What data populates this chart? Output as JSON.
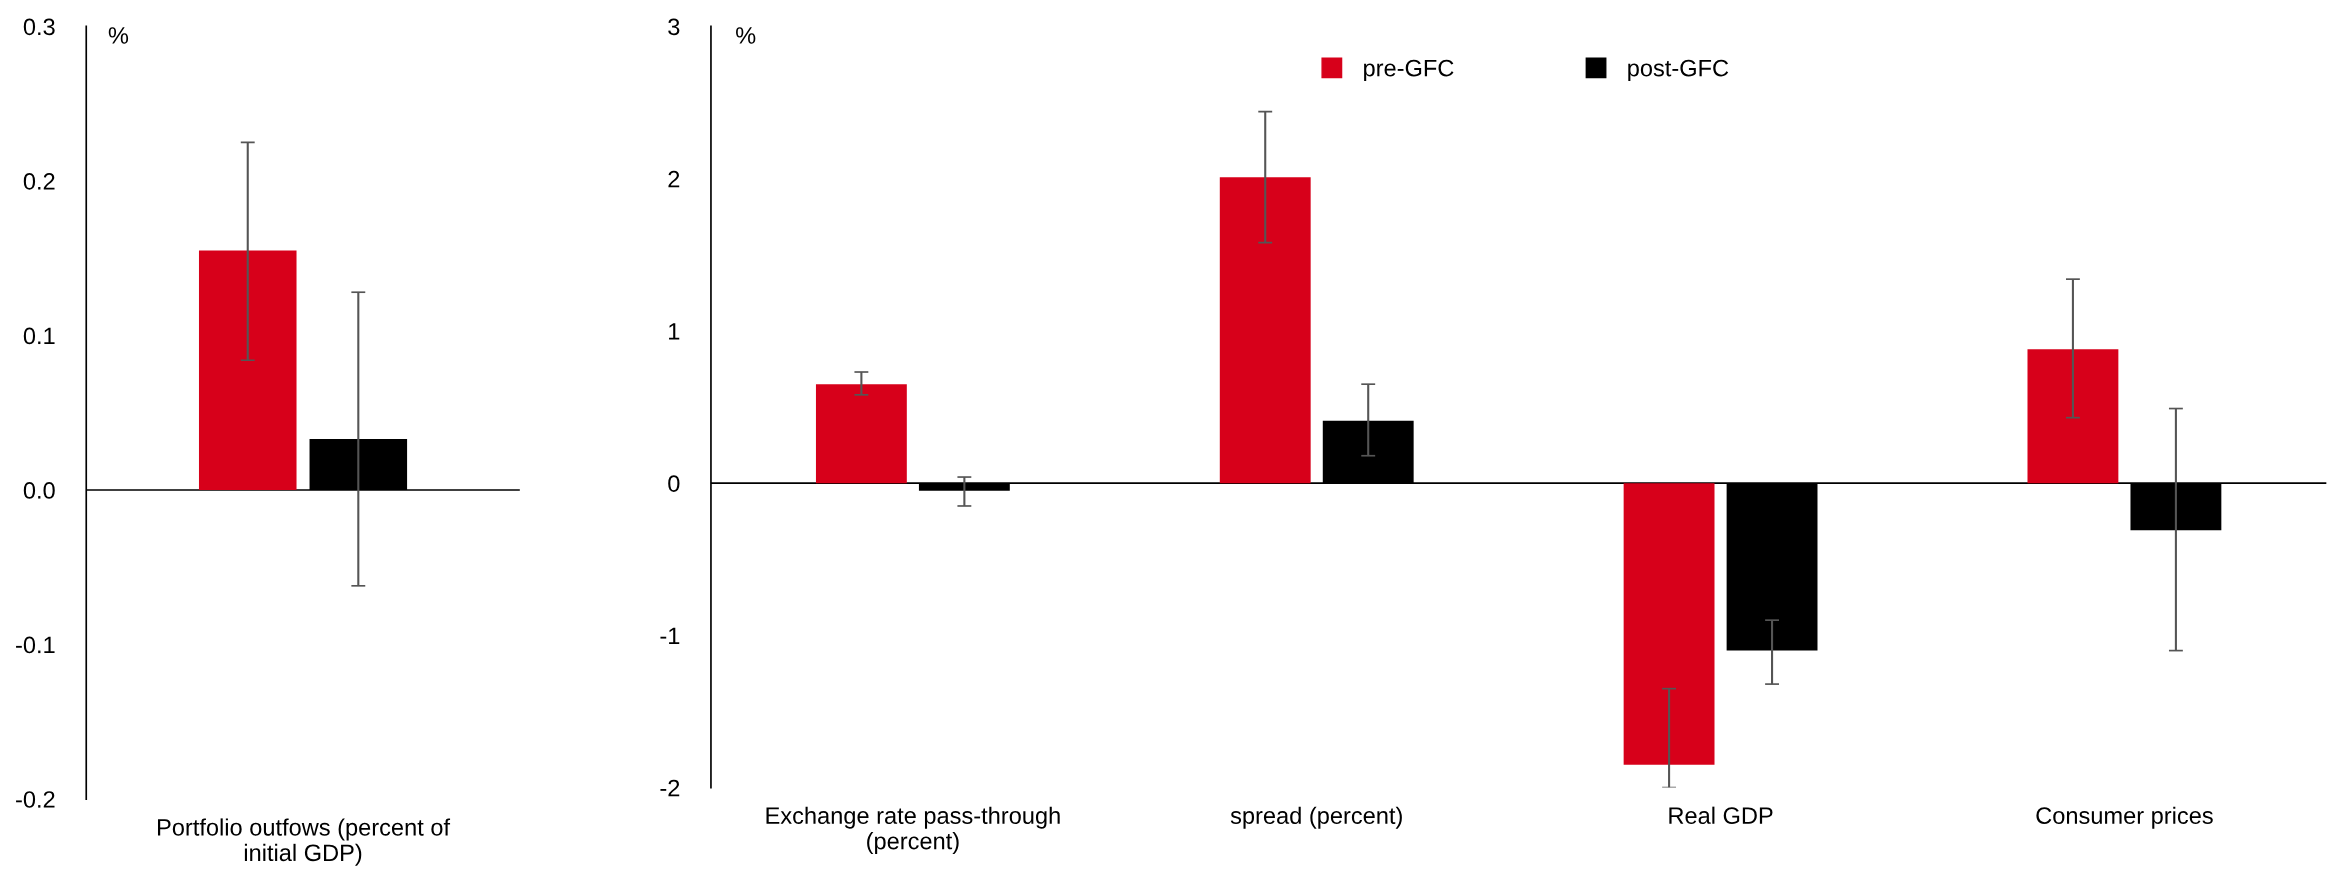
{
  "chart_data": [
    {
      "type": "bar",
      "ylabel": "%",
      "categories": [
        "Portfolio outfows (percent of initial GDP)"
      ],
      "ylim": [
        -0.2,
        0.3
      ],
      "yticks": [
        {
          "value": -0.2,
          "label": "-0.2"
        },
        {
          "value": -0.1,
          "label": "-0.1"
        },
        {
          "value": 0,
          "label": "0.0"
        },
        {
          "value": 0.1,
          "label": "0.1"
        },
        {
          "value": 0.2,
          "label": "0.2"
        },
        {
          "value": 0.3,
          "label": "0.3"
        }
      ],
      "series": [
        {
          "color": "#d7001a",
          "values": [
            0.155
          ],
          "errors": [
            [
              0.084,
              0.225
            ]
          ]
        },
        {
          "color": "#000000",
          "values": [
            0.033
          ],
          "errors": [
            [
              -0.062,
              0.128
            ]
          ]
        }
      ],
      "ref_lines": [
        {
          "axis": "y",
          "value": 0,
          "color": "#000000"
        }
      ],
      "grid": false,
      "legend": false
    },
    {
      "type": "bar",
      "ylabel": "%",
      "categories": [
        "Exchange rate pass-through (percent)",
        "spread (percent)",
        "Real GDP",
        "Consumer prices"
      ],
      "ylim": [
        -2,
        3
      ],
      "yticks": [
        -2,
        -1,
        0,
        1,
        2,
        3
      ],
      "series": [
        {
          "name": "pre-GFC",
          "color": "#d7001a",
          "values": [
            0.65,
            2.01,
            -1.85,
            0.88
          ],
          "errors": [
            [
              0.58,
              0.73
            ],
            [
              1.58,
              2.44
            ],
            [
              -2.0,
              -1.35
            ],
            [
              0.43,
              1.34
            ]
          ]
        },
        {
          "name": "post-GFC",
          "color": "#000000",
          "values": [
            -0.05,
            0.41,
            -1.1,
            -0.31
          ],
          "errors": [
            [
              -0.15,
              0.04
            ],
            [
              0.18,
              0.65
            ],
            [
              -1.32,
              -0.9
            ],
            [
              -1.1,
              0.49
            ]
          ]
        }
      ],
      "ref_lines": [
        {
          "axis": "y",
          "value": 0,
          "color": "#000000"
        }
      ],
      "grid": false,
      "legend": "top"
    }
  ]
}
